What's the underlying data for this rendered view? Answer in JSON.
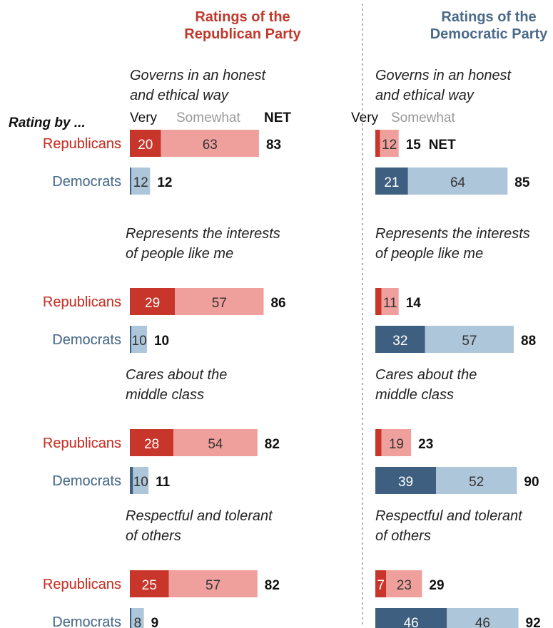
{
  "chart_data": {
    "type": "bar",
    "orientation": "horizontal",
    "stacked": true,
    "rating_by_label": "Rating by ...",
    "headers": {
      "very": "Very",
      "somewhat": "Somewhat",
      "net": "NET"
    },
    "panels": [
      {
        "title_lines": [
          "Ratings of the",
          "Republican Party"
        ],
        "attributes": [
          {
            "lines": [
              "Governs in an honest",
              "and ethical way"
            ],
            "rows": [
              {
                "group": "Republicans",
                "very": 20,
                "somewhat": 63,
                "net": 83
              },
              {
                "group": "Democrats",
                "very": 1,
                "somewhat": 12,
                "net": 12
              }
            ]
          },
          {
            "lines": [
              "Represents the interests",
              "of people like me"
            ],
            "rows": [
              {
                "group": "Republicans",
                "very": 29,
                "somewhat": 57,
                "net": 86
              },
              {
                "group": "Democrats",
                "very": 1,
                "somewhat": 10,
                "net": 10
              }
            ]
          },
          {
            "lines": [
              "Cares about the",
              "middle class"
            ],
            "rows": [
              {
                "group": "Republicans",
                "very": 28,
                "somewhat": 54,
                "net": 82
              },
              {
                "group": "Democrats",
                "very": 2,
                "somewhat": 10,
                "net": 11
              }
            ]
          },
          {
            "lines": [
              "Respectful and tolerant",
              "of others"
            ],
            "rows": [
              {
                "group": "Republicans",
                "very": 25,
                "somewhat": 57,
                "net": 82
              },
              {
                "group": "Democrats",
                "very": 1,
                "somewhat": 8,
                "net": 9
              }
            ]
          }
        ]
      },
      {
        "title_lines": [
          "Ratings of the",
          "Democratic Party"
        ],
        "attributes": [
          {
            "lines": [
              "Governs in an honest",
              "and ethical way"
            ],
            "rows": [
              {
                "group": "Republicans",
                "very": 3,
                "somewhat": 12,
                "net": 15
              },
              {
                "group": "Democrats",
                "very": 21,
                "somewhat": 64,
                "net": 85
              }
            ]
          },
          {
            "lines": [
              "Represents the interests",
              "of people like me"
            ],
            "rows": [
              {
                "group": "Republicans",
                "very": 4,
                "somewhat": 11,
                "net": 14
              },
              {
                "group": "Democrats",
                "very": 32,
                "somewhat": 57,
                "net": 88
              }
            ]
          },
          {
            "lines": [
              "Cares about the",
              "middle class"
            ],
            "rows": [
              {
                "group": "Republicans",
                "very": 4,
                "somewhat": 19,
                "net": 23
              },
              {
                "group": "Democrats",
                "very": 39,
                "somewhat": 52,
                "net": 90
              }
            ]
          },
          {
            "lines": [
              "Respectful and tolerant",
              "of others"
            ],
            "rows": [
              {
                "group": "Republicans",
                "very": 7,
                "somewhat": 23,
                "net": 29
              },
              {
                "group": "Democrats",
                "very": 46,
                "somewhat": 46,
                "net": 92
              }
            ]
          }
        ]
      }
    ],
    "colors": {
      "republican_title": "#c0392b",
      "democratic_title": "#4a6a8a",
      "rep_very": "#c8352b",
      "rep_somewhat": "#f0a09c",
      "dem_very": "#3e5f80",
      "dem_somewhat": "#aec6da",
      "rep_group_label": "#c8352b",
      "dem_group_label": "#4f6f8f",
      "somewhat_header": "#999999"
    }
  }
}
